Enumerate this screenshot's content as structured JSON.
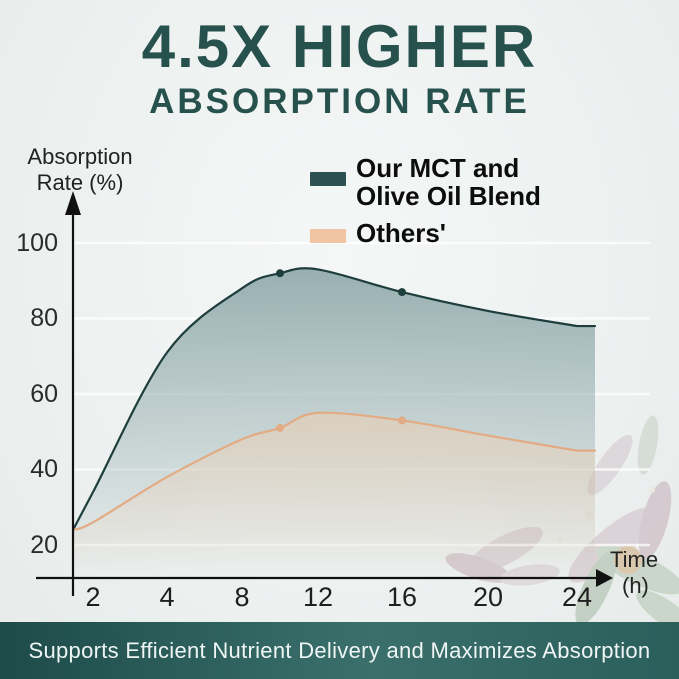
{
  "title": {
    "line1": "4.5X HIGHER",
    "line2": "ABSORPTION RATE",
    "color": "#26514d"
  },
  "axis": {
    "y_title_line1": "Absorption",
    "y_title_line2": "Rate (%)",
    "time_label": "Time",
    "time_unit": "(h)"
  },
  "legend": {
    "blend_line1": "Our MCT and",
    "blend_line2": "Olive Oil Blend",
    "others_label": "Others'"
  },
  "banner": {
    "text": "Supports Efficient Nutrient Delivery and Maximizes Absorption",
    "background": "#2a5f5c",
    "text_color": "#eef5f4"
  },
  "chart_data": {
    "type": "area",
    "title": "4.5X HIGHER ABSORPTION RATE",
    "xlabel": "Time (h)",
    "ylabel": "Absorption Rate (%)",
    "x_ticks": [
      2,
      4,
      8,
      12,
      16,
      20,
      24
    ],
    "y_ticks": [
      100,
      80,
      60,
      40,
      20
    ],
    "ylim": [
      10,
      105
    ],
    "grid": true,
    "legend_position": "top-right",
    "x": [
      0,
      2,
      4,
      8,
      10,
      12,
      16,
      20,
      24
    ],
    "series": [
      {
        "name": "Our MCT and Olive Oil Blend",
        "swatch_color": "#2d5153",
        "line_color": "#1e3e3e",
        "fill_top_color": "#8fa8aa",
        "values": [
          24,
          34,
          71,
          88,
          92,
          93,
          87,
          82,
          78
        ],
        "markers": [
          [
            10,
            92
          ],
          [
            16,
            87
          ]
        ]
      },
      {
        "name": "Others'",
        "swatch_color": "#f1c5a3",
        "line_color": "#e2ab84",
        "fill_top_color": "#f5cfad",
        "values": [
          24,
          26,
          38,
          48,
          51,
          55,
          53,
          49,
          45
        ],
        "markers": [
          [
            10,
            51
          ],
          [
            16,
            53
          ]
        ]
      }
    ]
  }
}
